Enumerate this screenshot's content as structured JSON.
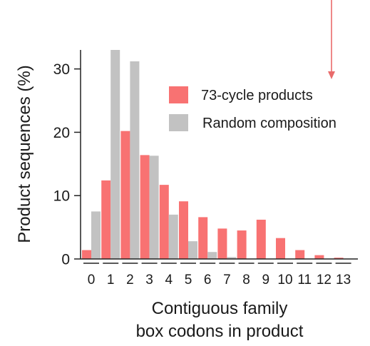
{
  "chart_data": {
    "type": "bar",
    "categories": [
      "0",
      "1",
      "2",
      "3",
      "4",
      "5",
      "6",
      "7",
      "8",
      "9",
      "10",
      "11",
      "12",
      "13"
    ],
    "series": [
      {
        "name": "73-cycle products",
        "color": "#f87272",
        "values": [
          1.4,
          12.4,
          20.2,
          16.4,
          11.7,
          9.1,
          6.6,
          4.8,
          4.5,
          6.2,
          3.3,
          1.4,
          0.6,
          0.2
        ]
      },
      {
        "name": "Random composition",
        "color": "#c2c2c2",
        "values": [
          7.5,
          33.0,
          31.2,
          16.3,
          7.0,
          2.8,
          1.1,
          0.3,
          0,
          0,
          0,
          0,
          0,
          0
        ]
      }
    ],
    "xlabel": [
      "Contiguous family",
      "box codons in product"
    ],
    "ylabel": "Product sequences (%)",
    "ylim": [
      0,
      33
    ],
    "yticks": [
      0,
      10,
      20,
      30
    ],
    "grid": false,
    "legend_position": "top-right",
    "annotation_arrow": {
      "at_category": "12",
      "color": "#e96b6b",
      "direction": "down"
    }
  }
}
